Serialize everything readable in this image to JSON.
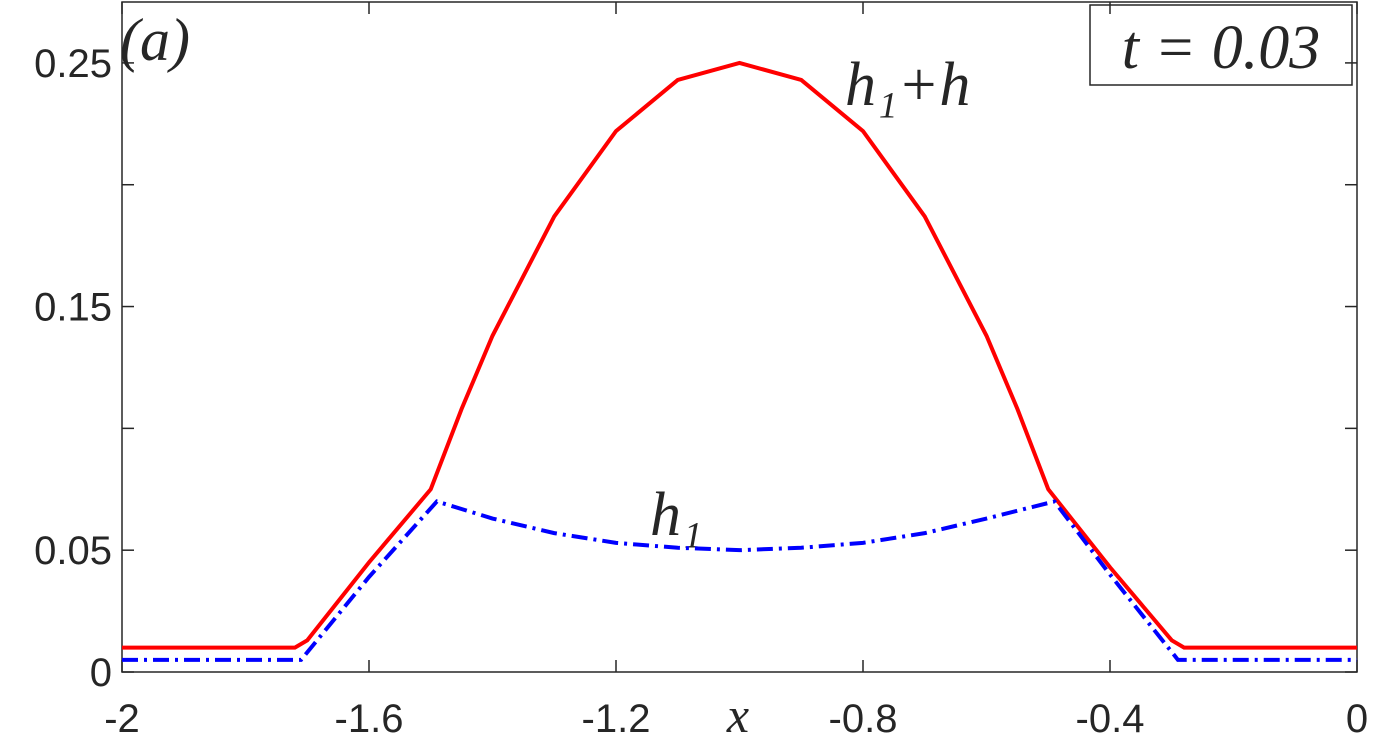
{
  "chart_data": {
    "type": "line",
    "xlabel": "x",
    "annotations": {
      "panel": "(a)",
      "time": "t = 0.03",
      "upper": "h₁+h",
      "lower": "h₁"
    },
    "xlim": [
      -2,
      0
    ],
    "ylim": [
      0,
      0.275
    ],
    "xticks": [
      -2,
      -1.6,
      -1.2,
      -0.8,
      -0.4,
      0
    ],
    "yticks": [
      0,
      0.05,
      0.15,
      0.25
    ],
    "yticks_minor": [
      0.1,
      0.2
    ],
    "series": [
      {
        "name": "h₁+h",
        "color": "#ff0000",
        "dash": "solid",
        "x": [
          -2,
          -1.72,
          -1.7,
          -1.6,
          -1.5,
          -1.45,
          -1.4,
          -1.3,
          -1.2,
          -1.1,
          -1.0,
          -0.9,
          -0.8,
          -0.7,
          -0.6,
          -0.55,
          -0.5,
          -0.4,
          -0.3,
          -0.28,
          0
        ],
        "values": [
          0.01,
          0.01,
          0.013,
          0.045,
          0.075,
          0.108,
          0.138,
          0.187,
          0.222,
          0.243,
          0.25,
          0.243,
          0.222,
          0.187,
          0.138,
          0.108,
          0.075,
          0.043,
          0.013,
          0.01,
          0.01
        ]
      },
      {
        "name": "h₁",
        "color": "#0000ff",
        "dash": "dashdot",
        "x": [
          -2,
          -1.71,
          -1.6,
          -1.49,
          -1.4,
          -1.3,
          -1.2,
          -1.1,
          -1.0,
          -0.9,
          -0.8,
          -0.7,
          -0.6,
          -0.49,
          -0.4,
          -0.29,
          0
        ],
        "values": [
          0.005,
          0.005,
          0.039,
          0.07,
          0.063,
          0.057,
          0.053,
          0.051,
          0.05,
          0.051,
          0.053,
          0.057,
          0.063,
          0.07,
          0.04,
          0.005,
          0.005
        ]
      }
    ]
  }
}
